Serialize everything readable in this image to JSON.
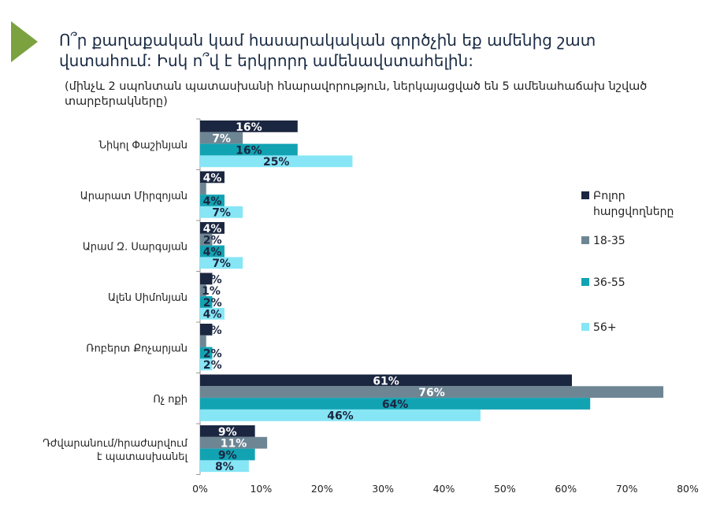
{
  "title": "Ո՞ր քաղաքական կամ հասարակական գործչին եք ամենից շատ վստահում: Իսկ ո՞վ է երկրորդ ամենավստահելին:",
  "subtitle": "(մինչև 2 սպոնտան պատասխանի հնարավորություն, ներկայացված են 5 ամենահաճախ նշված տարբերակները)",
  "chart_data": {
    "type": "bar",
    "orientation": "horizontal",
    "categories": [
      [
        "Նիկոլ Փաշինյան"
      ],
      [
        "Արարատ Միրզոյան"
      ],
      [
        "Արամ Զ. Սարգսյան"
      ],
      [
        "Ալեն Սիմոնյան"
      ],
      [
        "Ռոբերտ Քոչարյան"
      ],
      [
        "Ոչ ոքի"
      ],
      [
        "Դժվարանում/հրաժարվում",
        "է պատասխանել"
      ]
    ],
    "series": [
      {
        "name": "Բոլոր հարցվողները",
        "color": "#1b2640",
        "label_color": "#ffffff",
        "values": [
          16,
          4,
          4,
          2,
          2,
          61,
          9
        ],
        "labels": [
          "16%",
          "4%",
          "4%",
          "2%",
          "2%",
          "61%",
          "9%"
        ]
      },
      {
        "name": "18-35",
        "color": "#6e8694",
        "label_color": "#ffffff",
        "values": [
          7,
          1,
          2,
          1,
          1,
          76,
          11
        ],
        "labels": [
          "7%",
          "",
          "2%",
          "1%",
          "",
          "76%",
          "11%"
        ]
      },
      {
        "name": "36-55",
        "color": "#12a3b3",
        "label_color": "#1b2640",
        "values": [
          16,
          4,
          4,
          2,
          2,
          64,
          9
        ],
        "labels": [
          "16%",
          "4%",
          "4%",
          "2%",
          "2%",
          "64%",
          "9%"
        ]
      },
      {
        "name": "56+",
        "color": "#86e6f5",
        "label_color": "#1b2640",
        "values": [
          25,
          7,
          7,
          4,
          2,
          46,
          8
        ],
        "labels": [
          "25%",
          "7%",
          "7%",
          "4%",
          "2%",
          "46%",
          "8%"
        ]
      }
    ],
    "legend_names": [
      [
        "Բոլոր",
        "հարցվողները"
      ],
      [
        "18-35"
      ],
      [
        "36-55"
      ],
      [
        "56+"
      ]
    ],
    "xlim": [
      0,
      80
    ],
    "xticks": [
      "0%",
      "10%",
      "20%",
      "30%",
      "40%",
      "50%",
      "60%",
      "70%",
      "80%"
    ],
    "legend": "right"
  }
}
